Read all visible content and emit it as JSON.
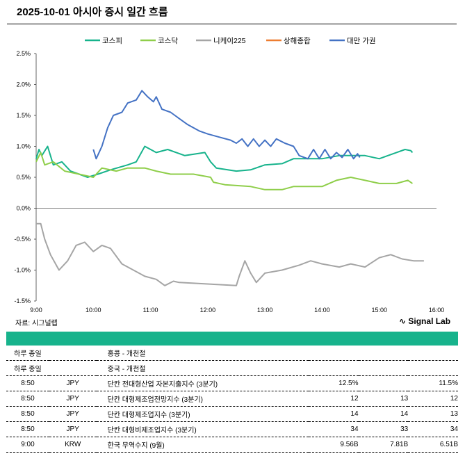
{
  "title": "2025-10-01 아시아 증시 일간 흐름",
  "source": "자료: 시그널랩",
  "logo": "Signal Lab",
  "chart_data": {
    "type": "line",
    "title": "2025-10-01 아시아 증시 일간 흐름",
    "ylim": [
      -1.5,
      2.5
    ],
    "yticks": [
      "2.5%",
      "2.0%",
      "1.5%",
      "1.0%",
      "0.5%",
      "0.0%",
      "-0.5%",
      "-1.0%",
      "-1.5%"
    ],
    "ytick_values": [
      2.5,
      2.0,
      1.5,
      1.0,
      0.5,
      0,
      -0.5,
      -1.0,
      -1.5
    ],
    "xlim": [
      9,
      16
    ],
    "xticks": [
      "9:00",
      "10:00",
      "11:00",
      "12:00",
      "13:00",
      "14:00",
      "15:00",
      "16:00"
    ],
    "legend_position": "top",
    "series": [
      {
        "name": "코스피",
        "color": "#17b38c",
        "points": [
          [
            9,
            0.8
          ],
          [
            9.05,
            0.95
          ],
          [
            9.1,
            0.85
          ],
          [
            9.2,
            1.0
          ],
          [
            9.3,
            0.7
          ],
          [
            9.45,
            0.75
          ],
          [
            9.6,
            0.6
          ],
          [
            9.75,
            0.55
          ],
          [
            9.9,
            0.5
          ],
          [
            10.08,
            0.55
          ],
          [
            10.3,
            0.62
          ],
          [
            10.6,
            0.7
          ],
          [
            10.75,
            0.75
          ],
          [
            10.9,
            1.0
          ],
          [
            11.1,
            0.9
          ],
          [
            11.3,
            0.95
          ],
          [
            11.6,
            0.85
          ],
          [
            11.95,
            0.9
          ],
          [
            12.05,
            0.75
          ],
          [
            12.15,
            0.65
          ],
          [
            12.5,
            0.6
          ],
          [
            12.75,
            0.62
          ],
          [
            13,
            0.7
          ],
          [
            13.3,
            0.72
          ],
          [
            13.5,
            0.8
          ],
          [
            14,
            0.8
          ],
          [
            14.3,
            0.85
          ],
          [
            14.75,
            0.85
          ],
          [
            15,
            0.8
          ],
          [
            15.15,
            0.85
          ],
          [
            15.3,
            0.9
          ],
          [
            15.45,
            0.95
          ],
          [
            15.55,
            0.93
          ],
          [
            15.58,
            0.9
          ]
        ]
      },
      {
        "name": "코스닥",
        "color": "#8fce4a",
        "points": [
          [
            9,
            0.75
          ],
          [
            9.08,
            0.9
          ],
          [
            9.15,
            0.7
          ],
          [
            9.3,
            0.75
          ],
          [
            9.5,
            0.6
          ],
          [
            9.75,
            0.55
          ],
          [
            10,
            0.5
          ],
          [
            10.15,
            0.65
          ],
          [
            10.4,
            0.6
          ],
          [
            10.6,
            0.65
          ],
          [
            10.9,
            0.65
          ],
          [
            11.1,
            0.6
          ],
          [
            11.35,
            0.55
          ],
          [
            11.75,
            0.55
          ],
          [
            12.05,
            0.5
          ],
          [
            12.1,
            0.42
          ],
          [
            12.3,
            0.38
          ],
          [
            12.75,
            0.35
          ],
          [
            13,
            0.3
          ],
          [
            13.3,
            0.3
          ],
          [
            13.5,
            0.35
          ],
          [
            14,
            0.35
          ],
          [
            14.25,
            0.45
          ],
          [
            14.5,
            0.5
          ],
          [
            14.75,
            0.45
          ],
          [
            15,
            0.4
          ],
          [
            15.3,
            0.4
          ],
          [
            15.5,
            0.45
          ],
          [
            15.58,
            0.4
          ]
        ]
      },
      {
        "name": "니케이225",
        "color": "#a5a5a5",
        "points": [
          [
            9,
            -0.25
          ],
          [
            9.08,
            -0.25
          ],
          [
            9.15,
            -0.5
          ],
          [
            9.25,
            -0.75
          ],
          [
            9.4,
            -1.0
          ],
          [
            9.55,
            -0.85
          ],
          [
            9.7,
            -0.6
          ],
          [
            9.85,
            -0.55
          ],
          [
            10,
            -0.7
          ],
          [
            10.15,
            -0.6
          ],
          [
            10.3,
            -0.65
          ],
          [
            10.5,
            -0.9
          ],
          [
            10.7,
            -1.0
          ],
          [
            10.9,
            -1.1
          ],
          [
            11.1,
            -1.15
          ],
          [
            11.25,
            -1.25
          ],
          [
            11.4,
            -1.18
          ],
          [
            11.5,
            -1.2
          ],
          [
            12.5,
            -1.25
          ],
          [
            12.55,
            -1.1
          ],
          [
            12.65,
            -0.85
          ],
          [
            12.75,
            -1.05
          ],
          [
            12.85,
            -1.2
          ],
          [
            13,
            -1.05
          ],
          [
            13.3,
            -1.0
          ],
          [
            13.6,
            -0.92
          ],
          [
            13.8,
            -0.85
          ],
          [
            14,
            -0.9
          ],
          [
            14.3,
            -0.95
          ],
          [
            14.5,
            -0.9
          ],
          [
            14.75,
            -0.95
          ],
          [
            15,
            -0.8
          ],
          [
            15.2,
            -0.75
          ],
          [
            15.4,
            -0.82
          ],
          [
            15.6,
            -0.85
          ],
          [
            15.78,
            -0.85
          ]
        ]
      },
      {
        "name": "상해종합",
        "color": "#ed7d31",
        "points": []
      },
      {
        "name": "대만 가권",
        "color": "#4472c4",
        "points": [
          [
            10,
            0.95
          ],
          [
            10.05,
            0.8
          ],
          [
            10.1,
            0.9
          ],
          [
            10.15,
            1.0
          ],
          [
            10.25,
            1.3
          ],
          [
            10.35,
            1.5
          ],
          [
            10.5,
            1.55
          ],
          [
            10.6,
            1.7
          ],
          [
            10.75,
            1.75
          ],
          [
            10.85,
            1.9
          ],
          [
            10.95,
            1.8
          ],
          [
            11.05,
            1.72
          ],
          [
            11.1,
            1.8
          ],
          [
            11.2,
            1.6
          ],
          [
            11.35,
            1.55
          ],
          [
            11.5,
            1.45
          ],
          [
            11.65,
            1.35
          ],
          [
            11.85,
            1.25
          ],
          [
            12,
            1.2
          ],
          [
            12.2,
            1.15
          ],
          [
            12.4,
            1.1
          ],
          [
            12.5,
            1.05
          ],
          [
            12.6,
            1.12
          ],
          [
            12.7,
            1.0
          ],
          [
            12.8,
            1.12
          ],
          [
            12.9,
            1.0
          ],
          [
            13,
            1.1
          ],
          [
            13.1,
            1.0
          ],
          [
            13.2,
            1.12
          ],
          [
            13.35,
            1.05
          ],
          [
            13.5,
            1.0
          ],
          [
            13.6,
            0.85
          ],
          [
            13.75,
            0.8
          ],
          [
            13.85,
            0.95
          ],
          [
            13.95,
            0.8
          ],
          [
            14.05,
            0.95
          ],
          [
            14.15,
            0.8
          ],
          [
            14.25,
            0.9
          ],
          [
            14.35,
            0.82
          ],
          [
            14.45,
            0.95
          ],
          [
            14.55,
            0.8
          ],
          [
            14.62,
            0.88
          ],
          [
            14.66,
            0.82
          ]
        ]
      }
    ]
  },
  "table": {
    "rows": [
      {
        "time": "하루 종일",
        "cur": "",
        "event": "홍콩 - 개천절",
        "actual": "",
        "forecast": "",
        "previous": ""
      },
      {
        "time": "하루 종일",
        "cur": "",
        "event": "중국 - 개천절",
        "actual": "",
        "forecast": "",
        "previous": ""
      },
      {
        "time": "8:50",
        "cur": "JPY",
        "event": "단칸 전대형산업 자본지출지수 (3분기)",
        "actual": "12.5%",
        "forecast": "",
        "previous": "11.5%"
      },
      {
        "time": "8:50",
        "cur": "JPY",
        "event": "단칸 대형제조업전망지수 (3분기)",
        "actual": "12",
        "forecast": "13",
        "previous": "12"
      },
      {
        "time": "8:50",
        "cur": "JPY",
        "event": "단칸 대형제조업지수 (3분기)",
        "actual": "14",
        "forecast": "14",
        "previous": "13"
      },
      {
        "time": "8:50",
        "cur": "JPY",
        "event": "단칸 대형비제조업지수 (3분기)",
        "actual": "34",
        "forecast": "33",
        "previous": "34"
      },
      {
        "time": "9:00",
        "cur": "KRW",
        "event": "한국 무역수지 (9월)",
        "actual": "9.56B",
        "forecast": "7.81B",
        "previous": "6.51B"
      }
    ]
  }
}
